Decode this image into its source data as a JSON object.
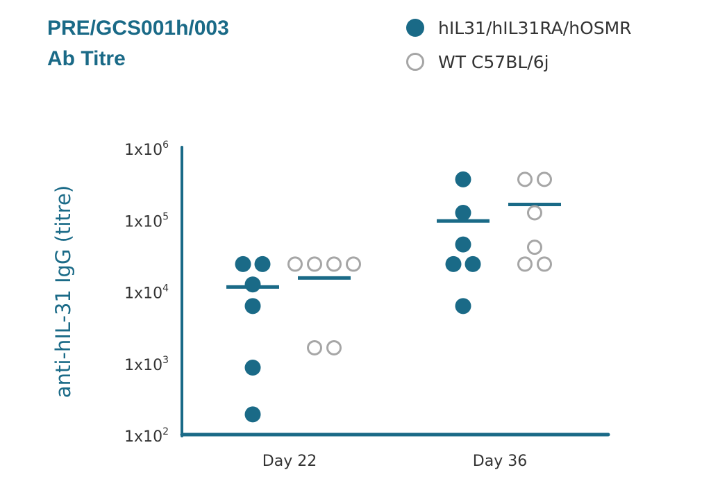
{
  "header": {
    "title_line1": "PRE/GCS001h/003",
    "title_line2": "Ab Titre"
  },
  "legend": [
    {
      "label": "hIL31/hIL31RA/hOSMR",
      "style": "filled"
    },
    {
      "label": "WT C57BL/6j",
      "style": "open"
    }
  ],
  "colors": {
    "filled": "#1a6a87",
    "open": "#a6a6a6",
    "axis": "#1a6a87",
    "title": "#1a6a87"
  },
  "chart_data": {
    "type": "scatter",
    "title": "PRE/GCS001h/003 Ab Titre",
    "xlabel": "",
    "ylabel": "anti-hIL-31 IgG (titre)",
    "yscale": "log",
    "ylim": [
      100,
      1000000
    ],
    "yticks": [
      {
        "value": 100,
        "base": "1x10",
        "exp": "2"
      },
      {
        "value": 1000,
        "base": "1x10",
        "exp": "3"
      },
      {
        "value": 10000,
        "base": "1x10",
        "exp": "4"
      },
      {
        "value": 100000,
        "base": "1x10",
        "exp": "5"
      },
      {
        "value": 1000000,
        "base": "1x10",
        "exp": "6"
      }
    ],
    "categories": [
      "Day 22",
      "Day 36"
    ],
    "series": [
      {
        "name": "hIL31/hIL31RA/hOSMR",
        "style": "filled",
        "points": [
          {
            "category": "Day 22",
            "value": 25000
          },
          {
            "category": "Day 22",
            "value": 25000
          },
          {
            "category": "Day 22",
            "value": 13000
          },
          {
            "category": "Day 22",
            "value": 6500
          },
          {
            "category": "Day 22",
            "value": 900
          },
          {
            "category": "Day 22",
            "value": 200
          },
          {
            "category": "Day 36",
            "value": 380000
          },
          {
            "category": "Day 36",
            "value": 130000
          },
          {
            "category": "Day 36",
            "value": 47000
          },
          {
            "category": "Day 36",
            "value": 25000
          },
          {
            "category": "Day 36",
            "value": 25000
          },
          {
            "category": "Day 36",
            "value": 6500
          }
        ],
        "medians": [
          12000,
          100000
        ]
      },
      {
        "name": "WT C57BL/6j",
        "style": "open",
        "points": [
          {
            "category": "Day 22",
            "value": 25000
          },
          {
            "category": "Day 22",
            "value": 25000
          },
          {
            "category": "Day 22",
            "value": 25000
          },
          {
            "category": "Day 22",
            "value": 25000
          },
          {
            "category": "Day 22",
            "value": 1700
          },
          {
            "category": "Day 22",
            "value": 1700
          },
          {
            "category": "Day 36",
            "value": 380000
          },
          {
            "category": "Day 36",
            "value": 380000
          },
          {
            "category": "Day 36",
            "value": 130000
          },
          {
            "category": "Day 36",
            "value": 43000
          },
          {
            "category": "Day 36",
            "value": 25000
          },
          {
            "category": "Day 36",
            "value": 25000
          }
        ],
        "medians": [
          16000,
          170000
        ]
      }
    ],
    "grid": false,
    "legend_position": "top-right"
  }
}
